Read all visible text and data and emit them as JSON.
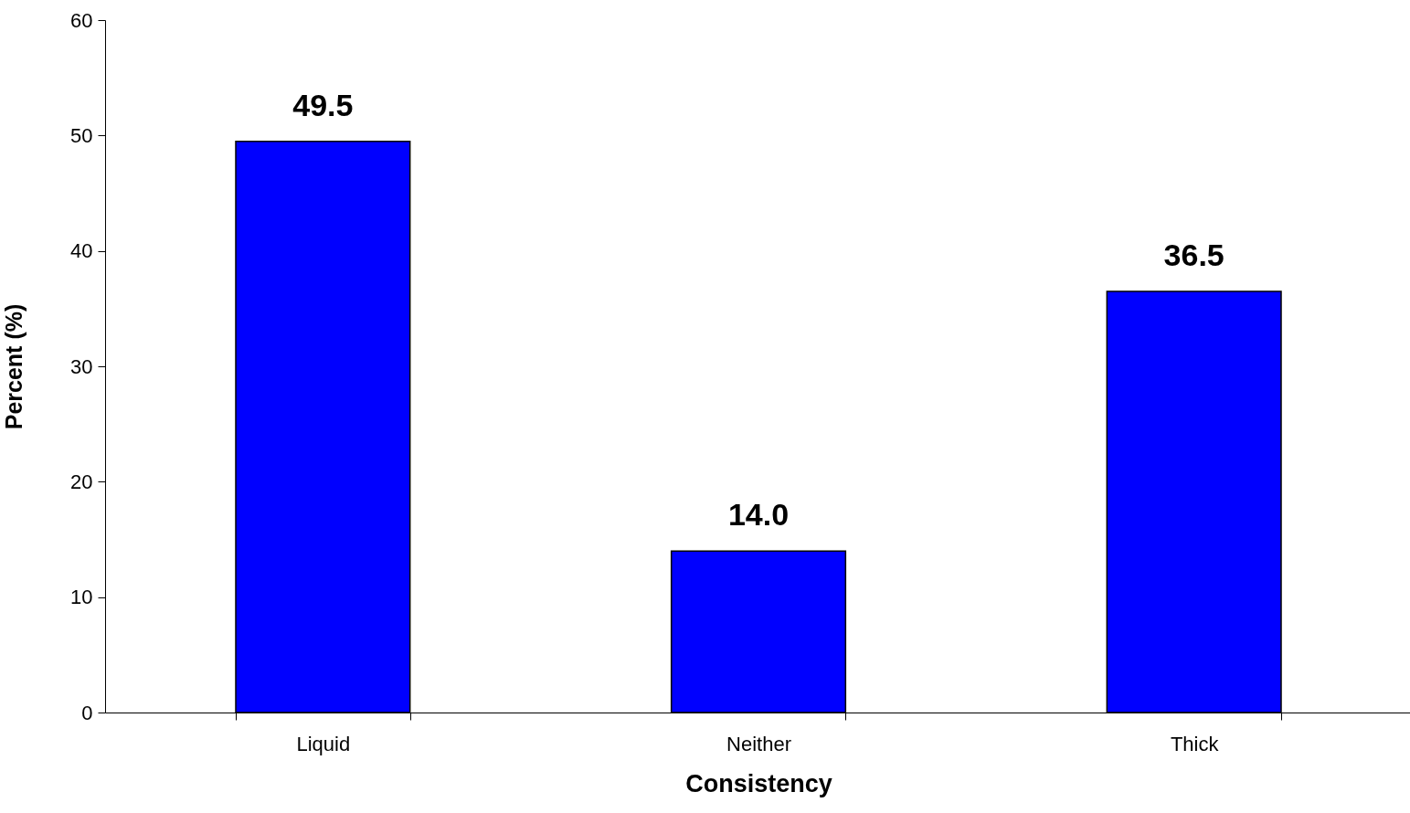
{
  "chart_data": {
    "type": "bar",
    "xlabel": "Consistency",
    "ylabel": "Percent (%)",
    "categories": [
      "Liquid",
      "Neither",
      "Thick"
    ],
    "values": [
      49.5,
      14.0,
      36.5
    ],
    "value_labels": [
      "49.5",
      "14.0",
      "36.5"
    ],
    "color": "#0000ff",
    "ylim": [
      0,
      60
    ],
    "yticks": [
      0,
      10,
      20,
      30,
      40,
      50,
      60
    ]
  }
}
